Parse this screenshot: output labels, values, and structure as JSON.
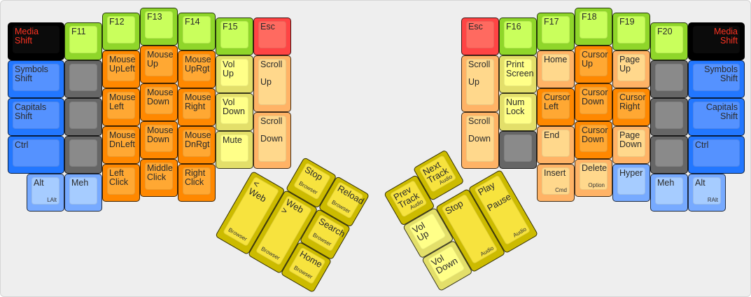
{
  "palette": {
    "black": {
      "outer": "#000000",
      "inner": "#0b0b0b",
      "text": "#ff3322"
    },
    "green": {
      "outer": "#8fd62a",
      "inner": "#c9ff5c"
    },
    "orange": {
      "outer": "#ff8800",
      "inner": "#ffa833"
    },
    "peach": {
      "outer": "#ffb366",
      "inner": "#ffd88c"
    },
    "lightyellow": {
      "outer": "#e3df6a",
      "inner": "#ffff88"
    },
    "red": {
      "outer": "#ff4444",
      "inner": "#ff6a60"
    },
    "blue": {
      "outer": "#2277ff",
      "inner": "#5592ff"
    },
    "lightblue": {
      "outer": "#77aaff",
      "inner": "#a6ccff"
    },
    "gray": {
      "outer": "#666666",
      "inner": "#8a8a8a"
    },
    "yellow": {
      "outer": "#ccbb00",
      "inner": "#f7e33e"
    }
  },
  "left_main": [
    {
      "label": "Media\nShift",
      "color": "black"
    },
    {
      "label": "Symbols\nShift",
      "color": "blue"
    },
    {
      "label": "Capitals\nShift",
      "color": "blue"
    },
    {
      "label": "Ctrl",
      "color": "blue"
    },
    {
      "label": "Alt",
      "sub": "LAlt",
      "color": "lightblue"
    },
    {
      "label": "F11",
      "color": "green"
    },
    {
      "label": "",
      "color": "gray"
    },
    {
      "label": "",
      "color": "gray"
    },
    {
      "label": "",
      "color": "gray"
    },
    {
      "label": "Meh",
      "color": "lightblue"
    },
    {
      "label": "F12",
      "color": "green"
    },
    {
      "label": "Mouse\nUpLeft",
      "color": "orange"
    },
    {
      "label": "Mouse\nLeft",
      "color": "orange"
    },
    {
      "label": "Mouse\nDnLeft",
      "color": "orange"
    },
    {
      "label": "Left\nClick",
      "color": "orange"
    },
    {
      "label": "F13",
      "color": "green"
    },
    {
      "label": "Mouse\nUp",
      "color": "orange"
    },
    {
      "label": "Mouse\nDown",
      "color": "orange"
    },
    {
      "label": "Mouse\nDown",
      "color": "orange"
    },
    {
      "label": "Middle\nClick",
      "color": "orange"
    },
    {
      "label": "F14",
      "color": "green"
    },
    {
      "label": "Mouse\nUpRgt",
      "color": "orange"
    },
    {
      "label": "Mouse\nRight",
      "color": "orange"
    },
    {
      "label": "Mouse\nDnRgt",
      "color": "orange"
    },
    {
      "label": "Right\nClick",
      "color": "orange"
    },
    {
      "label": "F15",
      "color": "green"
    },
    {
      "label": "Vol\nUp",
      "color": "lightyellow"
    },
    {
      "label": "Vol\nDown",
      "color": "lightyellow"
    },
    {
      "label": "Mute",
      "color": "lightyellow"
    },
    {
      "label": "Esc",
      "color": "red"
    },
    {
      "label": "Scroll\n\nUp",
      "color": "peach"
    },
    {
      "label": "Scroll\n\nDown",
      "color": "peach"
    }
  ],
  "right_main": [
    {
      "label": "Esc",
      "color": "red"
    },
    {
      "label": "Scroll\n\nUp",
      "color": "peach"
    },
    {
      "label": "Scroll\n\nDown",
      "color": "peach"
    },
    {
      "label": "F16",
      "color": "green"
    },
    {
      "label": "Print\nScreen",
      "color": "lightyellow"
    },
    {
      "label": "Num\nLock",
      "color": "lightyellow"
    },
    {
      "label": "",
      "color": "gray"
    },
    {
      "label": "F17",
      "color": "green"
    },
    {
      "label": "Home",
      "color": "peach"
    },
    {
      "label": "Cursor\nLeft",
      "color": "orange"
    },
    {
      "label": "End",
      "color": "peach"
    },
    {
      "label": "Insert",
      "sub": "Cmd",
      "color": "peach"
    },
    {
      "label": "F18",
      "color": "green"
    },
    {
      "label": "Cursor\nUp",
      "color": "orange"
    },
    {
      "label": "Cursor\nDown",
      "color": "orange"
    },
    {
      "label": "Cursor\nDown",
      "color": "orange"
    },
    {
      "label": "Delete",
      "sub": "Option",
      "color": "peach"
    },
    {
      "label": "F19",
      "color": "green"
    },
    {
      "label": "Page\nUp",
      "color": "peach"
    },
    {
      "label": "Cursor\nRight",
      "color": "orange"
    },
    {
      "label": "Page\nDown",
      "color": "peach"
    },
    {
      "label": "Hyper",
      "color": "lightblue"
    },
    {
      "label": "F20",
      "color": "green"
    },
    {
      "label": "",
      "color": "gray"
    },
    {
      "label": "",
      "color": "gray"
    },
    {
      "label": "",
      "color": "gray"
    },
    {
      "label": "Meh",
      "color": "lightblue"
    },
    {
      "label": "Media\nShift",
      "color": "black",
      "align": "right"
    },
    {
      "label": "Symbols\nShift",
      "color": "blue",
      "align": "right"
    },
    {
      "label": "Capitals\nShift",
      "color": "blue",
      "align": "right"
    },
    {
      "label": "Ctrl",
      "color": "blue"
    },
    {
      "label": "Alt",
      "sub": "RAlt",
      "color": "lightblue"
    }
  ],
  "left_thumb": [
    {
      "label": "Stop",
      "sub": "Browser",
      "color": "yellow"
    },
    {
      "label": "Reload",
      "sub": "Browser",
      "color": "yellow"
    },
    {
      "label": "< Web",
      "sub": "Browser",
      "color": "yellow"
    },
    {
      "label": "Web >",
      "sub": "Browser",
      "color": "yellow"
    },
    {
      "label": "Search",
      "sub": "Browser",
      "color": "yellow"
    },
    {
      "label": "Home",
      "sub": "Browser",
      "color": "yellow"
    }
  ],
  "right_thumb": [
    {
      "label": "Prev\nTrack",
      "sub": "Audio",
      "color": "yellow"
    },
    {
      "label": "Next\nTrack",
      "sub": "Audio",
      "color": "yellow"
    },
    {
      "label": "Vol\nUp",
      "color": "lightyellow"
    },
    {
      "label": "Vol\nDown",
      "color": "lightyellow"
    },
    {
      "label": "Stop",
      "sub": "Audio",
      "color": "yellow"
    },
    {
      "label": "Play\n\nPause",
      "sub": "Audio",
      "color": "yellow"
    }
  ]
}
